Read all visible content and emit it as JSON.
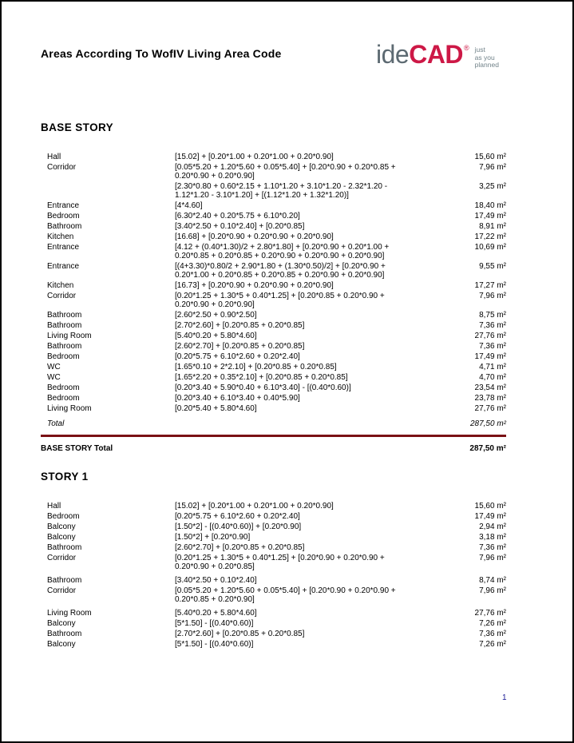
{
  "header": {
    "title": "Areas According To WofIV Living Area Code",
    "logo": {
      "ide": "ide",
      "cad": "CAD",
      "registered": "®",
      "tagline": [
        "just",
        "as you",
        "planned"
      ]
    }
  },
  "footer": {
    "page_number": "1"
  },
  "colors": {
    "rule": "#7a1014",
    "brand_red": "#cd1846",
    "brand_gray": "#5d6a72",
    "tagline_gray": "#72838a",
    "page_number_blue": "#1c1c96"
  },
  "sections": [
    {
      "heading": "BASE STORY",
      "groups": [
        {
          "rows": [
            {
              "name": "Hall",
              "formula": "[15.02] + [0.20*1.00 + 0.20*1.00 + 0.20*0.90]",
              "area": "15,60 m²"
            },
            {
              "name": "Corridor",
              "formula": "[0.05*5.20 + 1.20*5.60 + 0.05*5.40] + [0.20*0.90 + 0.20*0.85 + 0.20*0.90 + 0.20*0.90]",
              "area": "7,96 m²"
            },
            {
              "name": "",
              "formula": "[2.30*0.80 + 0.60*2.15 + 1.10*1.20 + 3.10*1.20 - 2.32*1.20 - 1.12*1.20 - 3.10*1.20] + [(1.12*1.20 + 1.32*1.20)]",
              "area": "3,25 m²"
            },
            {
              "name": "Entrance",
              "formula": "[4*4.60]",
              "area": "18,40 m²"
            },
            {
              "name": "Bedroom",
              "formula": "[6.30*2.40 + 0.20*5.75 + 6.10*0.20]",
              "area": "17,49 m²"
            },
            {
              "name": "Bathroom",
              "formula": "[3.40*2.50 + 0.10*2.40] + [0.20*0.85]",
              "area": "8,91 m²"
            },
            {
              "name": "Kitchen",
              "formula": "[16.68] + [0.20*0.90 + 0.20*0.90 + 0.20*0.90]",
              "area": "17,22 m²"
            },
            {
              "name": "Entrance",
              "formula": "[4.12 + (0.40*1.30)/2 + 2.80*1.80] + [0.20*0.90 + 0.20*1.00 + 0.20*0.85 + 0.20*0.85 + 0.20*0.90 + 0.20*0.90 + 0.20*0.90]",
              "area": "10,69 m²"
            },
            {
              "name": "Entrance",
              "formula": "[(4+3.30)*0.80/2 + 2.90*1.80 + (1.30*0.50)/2] + [0.20*0.90 + 0.20*1.00 + 0.20*0.85 + 0.20*0.85 + 0.20*0.90 + 0.20*0.90]",
              "area": "9,55 m²"
            },
            {
              "name": "Kitchen",
              "formula": "[16.73] + [0.20*0.90 + 0.20*0.90 + 0.20*0.90]",
              "area": "17,27 m²"
            },
            {
              "name": "Corridor",
              "formula": "[0.20*1.25 + 1.30*5 + 0.40*1.25] + [0.20*0.85 + 0.20*0.90 + 0.20*0.90 + 0.20*0.90]",
              "area": "7,96 m²"
            },
            {
              "name": "Bathroom",
              "formula": "[2.60*2.50 + 0.90*2.50]",
              "area": "8,75 m²"
            },
            {
              "name": "Bathroom",
              "formula": "[2.70*2.60] + [0.20*0.85 + 0.20*0.85]",
              "area": "7,36 m²"
            },
            {
              "name": "Living Room",
              "formula": "[5.40*0.20 + 5.80*4.60]",
              "area": "27,76 m²"
            },
            {
              "name": "Bathroom",
              "formula": "[2.60*2.70] + [0.20*0.85 + 0.20*0.85]",
              "area": "7,36 m²"
            },
            {
              "name": "Bedroom",
              "formula": "[0.20*5.75 + 6.10*2.60 + 0.20*2.40]",
              "area": "17,49 m²"
            },
            {
              "name": "WC",
              "formula": "[1.65*0.10 + 2*2.10] + [0.20*0.85 + 0.20*0.85]",
              "area": "4,71 m²"
            },
            {
              "name": "WC",
              "formula": "[1.65*2.20 + 0.35*2.10] + [0.20*0.85 + 0.20*0.85]",
              "area": "4,70 m²"
            },
            {
              "name": "Bedroom",
              "formula": "[0.20*3.40 + 5.90*0.40 + 6.10*3.40] - [(0.40*0.60)]",
              "area": "23,54 m²"
            },
            {
              "name": "Bedroom",
              "formula": "[0.20*3.40 + 6.10*3.40 + 0.40*5.90]",
              "area": "23,78 m²"
            },
            {
              "name": "Living Room",
              "formula": "[0.20*5.40 + 5.80*4.60]",
              "area": "27,76 m²"
            }
          ]
        }
      ],
      "total": {
        "label": "Total",
        "value": "287,50 m²"
      },
      "grand_total": {
        "label": "BASE STORY Total",
        "value": "287,50 m²"
      }
    },
    {
      "heading": "STORY 1",
      "groups": [
        {
          "rows": [
            {
              "name": "Hall",
              "formula": "[15.02] + [0.20*1.00 + 0.20*1.00 + 0.20*0.90]",
              "area": "15,60 m²"
            },
            {
              "name": "Bedroom",
              "formula": "[0.20*5.75 + 6.10*2.60 + 0.20*2.40]",
              "area": "17,49 m²"
            },
            {
              "name": "Balcony",
              "formula": "[1.50*2] - [(0.40*0.60)] + [0.20*0.90]",
              "area": "2,94 m²"
            },
            {
              "name": "Balcony",
              "formula": "[1.50*2] + [0.20*0.90]",
              "area": "3,18 m²"
            },
            {
              "name": "Bathroom",
              "formula": "[2.60*2.70] + [0.20*0.85 + 0.20*0.85]",
              "area": "7,36 m²"
            },
            {
              "name": "Corridor",
              "formula": "[0.20*1.25 + 1.30*5 + 0.40*1.25] + [0.20*0.90 + 0.20*0.90 + 0.20*0.90 + 0.20*0.85]",
              "area": "7,96 m²"
            }
          ]
        },
        {
          "rows": [
            {
              "name": "Bathroom",
              "formula": "[3.40*2.50 + 0.10*2.40]",
              "area": "8,74 m²"
            },
            {
              "name": "Corridor",
              "formula": "[0.05*5.20 + 1.20*5.60 + 0.05*5.40] + [0.20*0.90 + 0.20*0.90 + 0.20*0.85 + 0.20*0.90]",
              "area": "7,96 m²"
            }
          ]
        },
        {
          "rows": [
            {
              "name": "Living Room",
              "formula": "[5.40*0.20 + 5.80*4.60]",
              "area": "27,76 m²"
            },
            {
              "name": "Balcony",
              "formula": "[5*1.50] - [(0.40*0.60)]",
              "area": "7,26 m²"
            },
            {
              "name": "Bathroom",
              "formula": "[2.70*2.60] + [0.20*0.85 + 0.20*0.85]",
              "area": "7,36 m²"
            },
            {
              "name": "Balcony",
              "formula": "[5*1.50] - [(0.40*0.60)]",
              "area": "7,26 m²"
            }
          ]
        }
      ]
    }
  ]
}
